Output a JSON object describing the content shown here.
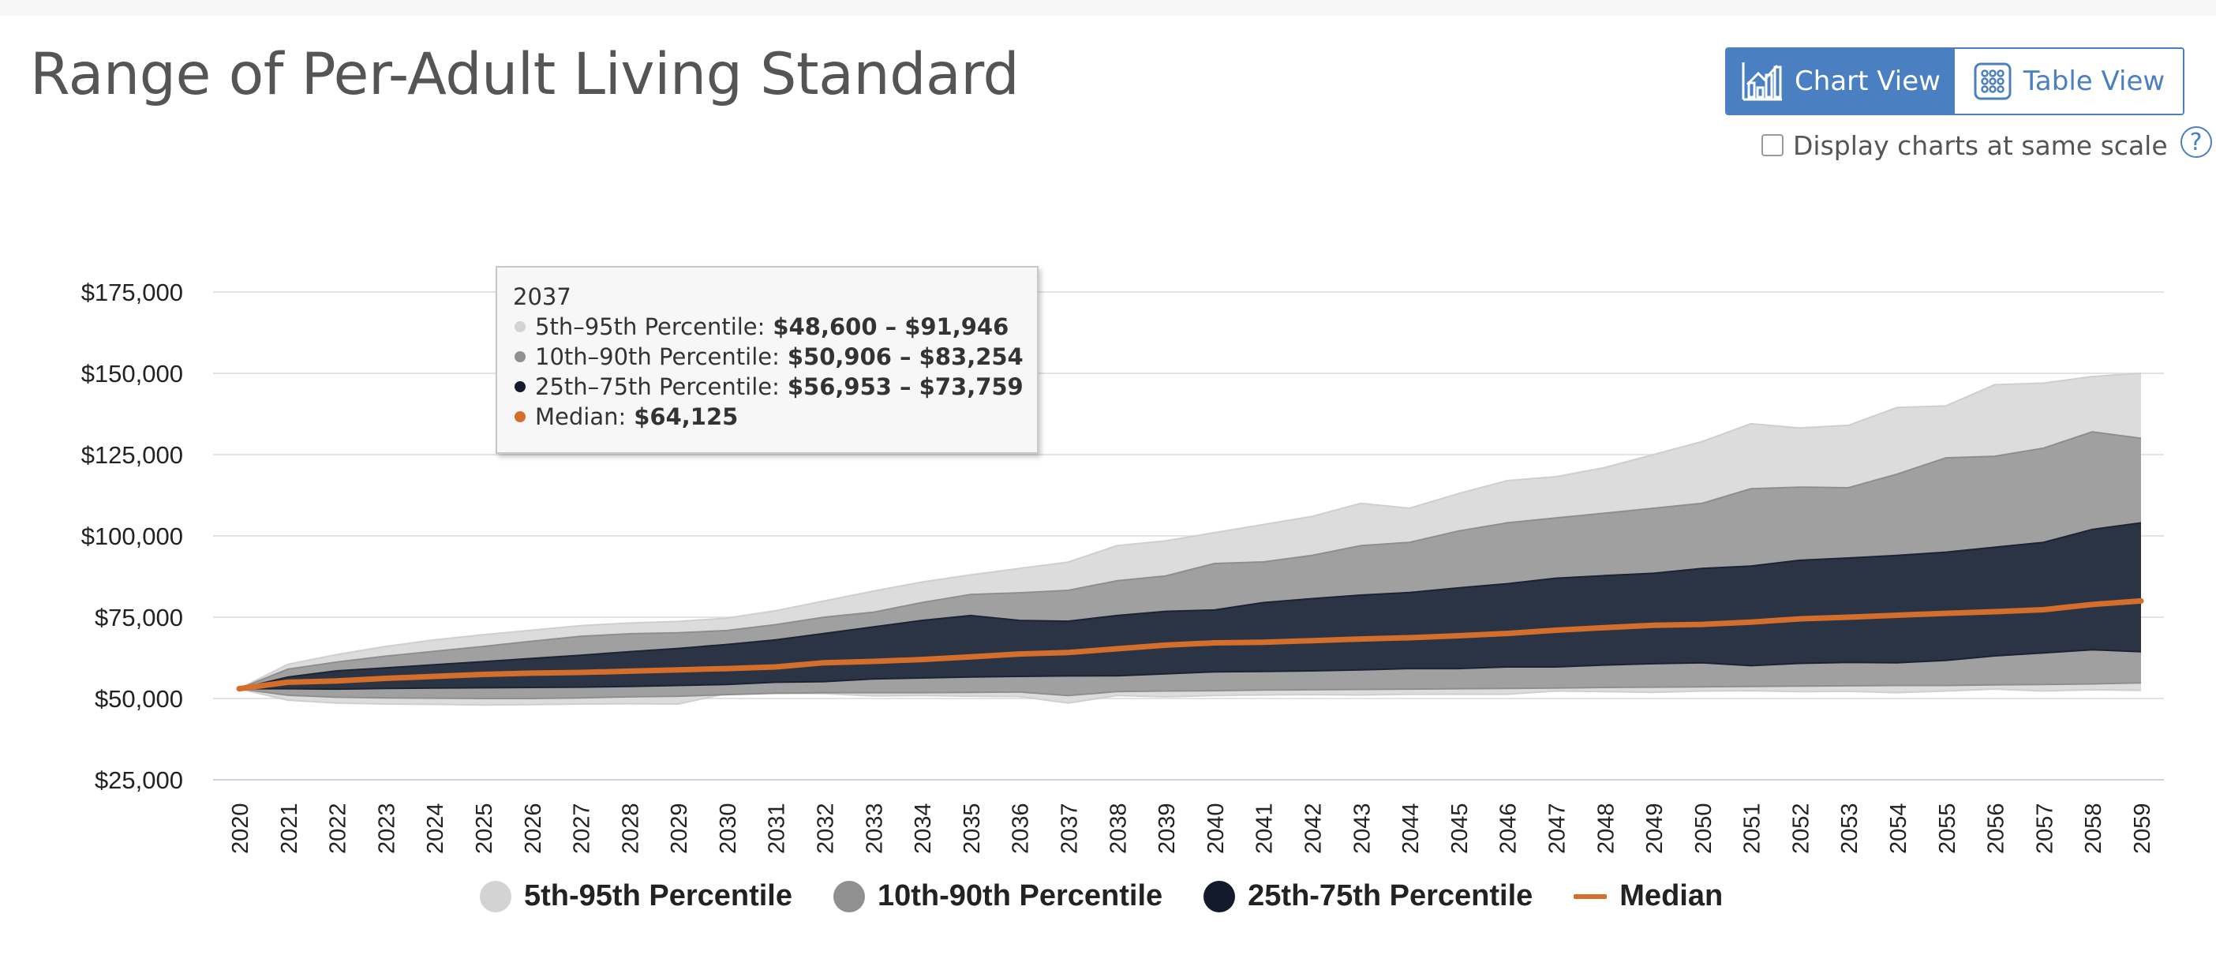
{
  "page": {
    "title": "Range of Per-Adult Living Standard"
  },
  "view_toggle": {
    "chart_label": "Chart View",
    "table_label": "Table View"
  },
  "same_scale": {
    "label": "Display charts at same scale",
    "checked": false,
    "help_glyph": "?"
  },
  "tooltip": {
    "year": "2037",
    "rows": [
      {
        "label": "5th–95th Percentile:",
        "value": "$48,600 – $91,946",
        "color": "#d3d3d3"
      },
      {
        "label": "10th–90th Percentile:",
        "value": "$50,906 – $83,254",
        "color": "#909090"
      },
      {
        "label": "25th–75th Percentile:",
        "value": "$56,953 – $73,759",
        "color": "#131a2b"
      },
      {
        "label": "Median:",
        "value": "$64,125",
        "color": "#d46e2a"
      }
    ]
  },
  "chart_data": {
    "type": "area",
    "title": "Range of Per-Adult Living Standard",
    "xlabel": "",
    "ylabel": "",
    "y_ticks": [
      25000,
      50000,
      75000,
      100000,
      125000,
      150000,
      175000
    ],
    "y_tick_labels": [
      "$25,000",
      "$50,000",
      "$75,000",
      "$100,000",
      "$125,000",
      "$150,000",
      "$175,000"
    ],
    "ylim": [
      25000,
      175000
    ],
    "x": [
      "2020",
      "2021",
      "2022",
      "2023",
      "2024",
      "2025",
      "2026",
      "2027",
      "2028",
      "2029",
      "2030",
      "2031",
      "2032",
      "2033",
      "2034",
      "2035",
      "2036",
      "2037",
      "2038",
      "2039",
      "2040",
      "2041",
      "2042",
      "2043",
      "2044",
      "2045",
      "2046",
      "2047",
      "2048",
      "2049",
      "2050",
      "2051",
      "2052",
      "2053",
      "2054",
      "2055",
      "2056",
      "2057",
      "2058",
      "2059"
    ],
    "series": [
      {
        "name": "5th-95th Percentile",
        "color": "#dcdcdc",
        "low": [
          53000,
          49500,
          48600,
          48300,
          48200,
          48000,
          48100,
          48300,
          48400,
          48300,
          51500,
          51600,
          51500,
          50800,
          50900,
          50700,
          50600,
          48600,
          50900,
          50500,
          50900,
          51100,
          51200,
          51100,
          51300,
          51300,
          51300,
          52300,
          52100,
          51900,
          52300,
          52400,
          52100,
          52200,
          51800,
          52300,
          52900,
          52300,
          52700,
          52500
        ],
        "high": [
          53000,
          60500,
          63500,
          66000,
          68000,
          69600,
          71000,
          72400,
          73200,
          73700,
          74700,
          77000,
          80000,
          83000,
          85800,
          88000,
          90000,
          91946,
          97000,
          98500,
          101000,
          103500,
          106000,
          110000,
          108500,
          113000,
          117000,
          118200,
          121000,
          125000,
          129000,
          134500,
          133200,
          134000,
          139500,
          140000,
          146500,
          147000,
          149000,
          150000
        ]
      },
      {
        "name": "10th-90th Percentile",
        "color": "#a0a0a0",
        "low": [
          53000,
          51000,
          50400,
          50200,
          50100,
          50000,
          50000,
          50200,
          50500,
          50700,
          51200,
          51600,
          51800,
          51800,
          51800,
          51900,
          52000,
          50906,
          52100,
          52300,
          52400,
          52600,
          52700,
          52800,
          52900,
          53000,
          53100,
          53200,
          53400,
          53500,
          53600,
          53700,
          53800,
          53900,
          54000,
          54000,
          54200,
          54300,
          54500,
          54800
        ],
        "high": [
          53000,
          59000,
          61200,
          63000,
          64500,
          66000,
          67600,
          69100,
          69900,
          70200,
          70900,
          72700,
          75000,
          76500,
          79500,
          82000,
          82500,
          83254,
          86200,
          87700,
          91500,
          92000,
          94000,
          97000,
          98000,
          101500,
          104000,
          105500,
          107000,
          108500,
          110000,
          114500,
          115000,
          114800,
          119000,
          124000,
          124500,
          127000,
          132000,
          130000
        ]
      },
      {
        "name": "25th-75th Percentile",
        "color": "#2b3444",
        "low": [
          53000,
          53000,
          52900,
          53100,
          53200,
          53300,
          53400,
          53500,
          53700,
          54000,
          54300,
          55000,
          55200,
          56000,
          56300,
          56600,
          56800,
          56953,
          57000,
          57600,
          58200,
          58300,
          58500,
          58800,
          59200,
          59200,
          59700,
          59700,
          60300,
          60700,
          61000,
          60100,
          60800,
          61100,
          61000,
          61700,
          63100,
          64000,
          65000,
          64400
        ],
        "high": [
          53000,
          56600,
          58500,
          59400,
          60400,
          61300,
          62300,
          63300,
          64400,
          65400,
          66600,
          68000,
          70000,
          72000,
          74000,
          75500,
          74000,
          73759,
          75500,
          76800,
          77200,
          79500,
          80700,
          81800,
          82600,
          84000,
          85300,
          87000,
          87800,
          88500,
          90000,
          90700,
          92500,
          93200,
          94000,
          95000,
          96500,
          98000,
          102000,
          104000
        ]
      },
      {
        "name": "Median",
        "color": "#d46e2a",
        "values": [
          53000,
          55000,
          55400,
          56200,
          56800,
          57400,
          57800,
          58000,
          58400,
          58800,
          59200,
          59700,
          61000,
          61400,
          62000,
          62800,
          63700,
          64125,
          65300,
          66400,
          67100,
          67300,
          67800,
          68300,
          68700,
          69300,
          70000,
          71000,
          71800,
          72500,
          72800,
          73500,
          74500,
          75000,
          75600,
          76200,
          76700,
          77300,
          78900,
          80000
        ]
      }
    ],
    "legend_position": "bottom-center"
  },
  "legend": {
    "items": [
      {
        "label": "5th-95th Percentile",
        "color": "#d3d3d3",
        "shape": "circle"
      },
      {
        "label": "10th-90th Percentile",
        "color": "#909090",
        "shape": "circle"
      },
      {
        "label": "25th-75th Percentile",
        "color": "#131a2b",
        "shape": "circle"
      },
      {
        "label": "Median",
        "color": "#d46e2a",
        "shape": "line"
      }
    ]
  }
}
